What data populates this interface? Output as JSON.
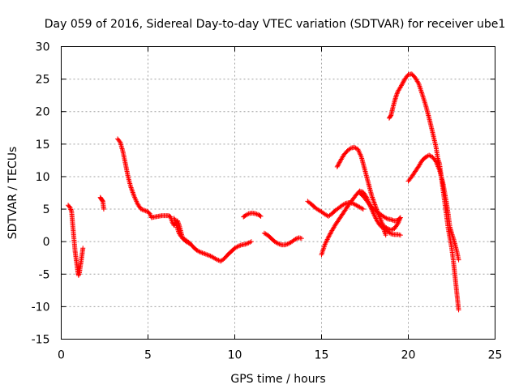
{
  "chart_data": {
    "type": "scatter",
    "title": "Day 059 of 2016, Sidereal Day-to-day VTEC variation (SDTVAR) for receiver ube1",
    "xlabel": "GPS time / hours",
    "ylabel": "SDTVAR / TECUs",
    "xlim": [
      0,
      25
    ],
    "ylim": [
      -15,
      30
    ],
    "xticks": [
      0,
      5,
      10,
      15,
      20,
      25
    ],
    "yticks": [
      -15,
      -10,
      -5,
      0,
      5,
      10,
      15,
      20,
      25,
      30
    ],
    "grid": true,
    "marker": "plus",
    "marker_color": "#ff0000",
    "series": [
      {
        "segments": [
          [
            [
              0.4,
              5.6
            ],
            [
              0.5,
              5.3
            ],
            [
              0.6,
              4.6
            ],
            [
              0.65,
              3.0
            ],
            [
              0.7,
              1.5
            ],
            [
              0.75,
              0.0
            ],
            [
              0.8,
              -1.5
            ],
            [
              0.85,
              -2.5
            ],
            [
              0.9,
              -3.5
            ],
            [
              0.95,
              -4.5
            ],
            [
              1.0,
              -5.2
            ],
            [
              1.05,
              -4.8
            ],
            [
              1.1,
              -3.8
            ],
            [
              1.15,
              -3.0
            ],
            [
              1.2,
              -2.0
            ],
            [
              1.25,
              -1.0
            ]
          ],
          [
            [
              2.25,
              6.8
            ],
            [
              2.3,
              6.6
            ],
            [
              2.35,
              6.4
            ],
            [
              2.4,
              6.2
            ],
            [
              2.45,
              5.0
            ]
          ],
          [
            [
              3.25,
              15.8
            ],
            [
              3.4,
              15.3
            ],
            [
              3.55,
              13.9
            ],
            [
              3.7,
              12.0
            ],
            [
              3.85,
              10.0
            ],
            [
              4.0,
              8.5
            ],
            [
              4.2,
              7.0
            ],
            [
              4.4,
              5.8
            ],
            [
              4.6,
              5.0
            ],
            [
              4.8,
              4.8
            ],
            [
              5.0,
              4.6
            ],
            [
              5.1,
              4.3
            ],
            [
              5.2,
              3.7
            ],
            [
              5.4,
              3.8
            ],
            [
              5.6,
              3.9
            ],
            [
              5.8,
              4.0
            ],
            [
              6.0,
              4.0
            ],
            [
              6.2,
              4.0
            ],
            [
              6.3,
              3.8
            ],
            [
              6.4,
              3.0
            ],
            [
              6.5,
              2.5
            ],
            [
              6.6,
              3.0
            ],
            [
              6.7,
              3.2
            ],
            [
              6.8,
              2.5
            ],
            [
              6.9,
              1.5
            ],
            [
              7.0,
              0.5
            ],
            [
              7.2,
              0.0
            ],
            [
              7.4,
              -0.3
            ]
          ],
          [
            [
              6.5,
              3.6
            ],
            [
              6.6,
              3.0
            ],
            [
              6.7,
              2.0
            ],
            [
              6.8,
              1.2
            ],
            [
              7.0,
              0.5
            ],
            [
              7.2,
              0.2
            ],
            [
              7.4,
              -0.2
            ],
            [
              7.6,
              -0.8
            ],
            [
              7.8,
              -1.3
            ],
            [
              8.0,
              -1.6
            ],
            [
              8.2,
              -1.8
            ],
            [
              8.4,
              -2.0
            ],
            [
              8.6,
              -2.2
            ],
            [
              8.8,
              -2.5
            ],
            [
              9.0,
              -2.8
            ],
            [
              9.2,
              -3.0
            ],
            [
              9.4,
              -2.6
            ],
            [
              9.6,
              -2.0
            ],
            [
              9.8,
              -1.5
            ],
            [
              10.0,
              -1.0
            ],
            [
              10.2,
              -0.7
            ],
            [
              10.4,
              -0.5
            ],
            [
              10.6,
              -0.4
            ],
            [
              10.8,
              -0.2
            ],
            [
              10.95,
              0.0
            ]
          ],
          [
            [
              10.5,
              3.8
            ],
            [
              10.6,
              4.0
            ],
            [
              10.8,
              4.3
            ],
            [
              11.0,
              4.4
            ],
            [
              11.2,
              4.3
            ],
            [
              11.4,
              4.1
            ],
            [
              11.5,
              3.9
            ]
          ],
          [
            [
              11.7,
              1.3
            ],
            [
              11.9,
              1.0
            ],
            [
              12.1,
              0.5
            ],
            [
              12.3,
              0.0
            ],
            [
              12.5,
              -0.3
            ],
            [
              12.7,
              -0.5
            ],
            [
              12.9,
              -0.5
            ],
            [
              13.1,
              -0.3
            ],
            [
              13.3,
              0.0
            ],
            [
              13.5,
              0.4
            ],
            [
              13.7,
              0.6
            ],
            [
              13.85,
              0.5
            ]
          ],
          [
            [
              14.2,
              6.2
            ],
            [
              14.4,
              5.8
            ],
            [
              14.6,
              5.3
            ],
            [
              14.8,
              4.9
            ],
            [
              15.0,
              4.6
            ],
            [
              15.2,
              4.2
            ],
            [
              15.4,
              3.9
            ],
            [
              15.6,
              4.3
            ],
            [
              15.8,
              4.8
            ],
            [
              16.0,
              5.2
            ],
            [
              16.2,
              5.6
            ],
            [
              16.4,
              5.9
            ],
            [
              16.6,
              6.0
            ],
            [
              16.8,
              5.9
            ],
            [
              17.0,
              5.6
            ],
            [
              17.2,
              5.3
            ],
            [
              17.4,
              5.0
            ]
          ],
          [
            [
              15.0,
              -2.0
            ],
            [
              15.1,
              -1.2
            ],
            [
              15.2,
              -0.4
            ],
            [
              15.4,
              0.7
            ],
            [
              15.6,
              1.7
            ],
            [
              15.8,
              2.6
            ],
            [
              16.0,
              3.4
            ],
            [
              16.2,
              4.2
            ],
            [
              16.4,
              5.0
            ],
            [
              16.6,
              5.8
            ],
            [
              16.8,
              6.5
            ],
            [
              17.0,
              7.2
            ],
            [
              17.2,
              7.8
            ],
            [
              17.4,
              7.6
            ],
            [
              17.6,
              6.8
            ],
            [
              17.8,
              5.5
            ],
            [
              18.0,
              4.3
            ],
            [
              18.2,
              3.2
            ],
            [
              18.4,
              2.4
            ],
            [
              18.6,
              2.0
            ],
            [
              18.8,
              1.6
            ],
            [
              19.0,
              1.2
            ],
            [
              19.2,
              1.1
            ],
            [
              19.4,
              1.1
            ],
            [
              19.55,
              1.0
            ]
          ],
          [
            [
              15.9,
              11.5
            ],
            [
              16.1,
              12.5
            ],
            [
              16.3,
              13.4
            ],
            [
              16.5,
              14.0
            ],
            [
              16.7,
              14.4
            ],
            [
              16.9,
              14.5
            ],
            [
              17.1,
              14.2
            ],
            [
              17.3,
              13.0
            ],
            [
              17.5,
              11.0
            ],
            [
              17.7,
              9.0
            ],
            [
              17.9,
              7.0
            ],
            [
              18.1,
              5.5
            ],
            [
              18.3,
              4.0
            ],
            [
              18.5,
              2.8
            ],
            [
              18.6,
              1.8
            ],
            [
              18.7,
              1.0
            ]
          ],
          [
            [
              17.2,
              7.5
            ],
            [
              17.4,
              7.0
            ],
            [
              17.6,
              6.3
            ],
            [
              17.8,
              5.6
            ],
            [
              18.0,
              5.0
            ],
            [
              18.2,
              4.6
            ],
            [
              18.4,
              4.2
            ],
            [
              18.6,
              3.8
            ],
            [
              18.8,
              3.5
            ],
            [
              19.0,
              3.4
            ],
            [
              19.2,
              3.2
            ],
            [
              19.4,
              3.3
            ],
            [
              19.5,
              3.6
            ]
          ],
          [
            [
              18.6,
              2.4
            ],
            [
              18.8,
              2.0
            ],
            [
              19.0,
              1.8
            ],
            [
              19.2,
              2.0
            ],
            [
              19.4,
              2.8
            ],
            [
              19.55,
              3.7
            ]
          ],
          [
            [
              18.9,
              19.0
            ],
            [
              19.0,
              19.4
            ],
            [
              19.1,
              20.5
            ],
            [
              19.2,
              21.5
            ],
            [
              19.3,
              22.4
            ],
            [
              19.4,
              23.1
            ],
            [
              19.6,
              24.0
            ],
            [
              19.8,
              25.0
            ],
            [
              20.0,
              25.7
            ],
            [
              20.2,
              25.8
            ],
            [
              20.4,
              25.2
            ],
            [
              20.6,
              24.3
            ],
            [
              20.8,
              22.7
            ],
            [
              21.0,
              21.0
            ],
            [
              21.2,
              19.0
            ],
            [
              21.4,
              16.8
            ],
            [
              21.6,
              14.5
            ],
            [
              21.7,
              12.8
            ],
            [
              21.8,
              12.0
            ],
            [
              21.9,
              10.0
            ],
            [
              22.0,
              8.0
            ],
            [
              22.1,
              6.0
            ],
            [
              22.2,
              4.0
            ],
            [
              22.3,
              2.0
            ],
            [
              22.4,
              0.5
            ],
            [
              22.5,
              -1.0
            ],
            [
              22.6,
              -3.0
            ],
            [
              22.7,
              -5.5
            ],
            [
              22.8,
              -8.0
            ],
            [
              22.9,
              -10.5
            ]
          ],
          [
            [
              20.0,
              9.3
            ],
            [
              20.2,
              10.0
            ],
            [
              20.4,
              10.8
            ],
            [
              20.6,
              11.6
            ],
            [
              20.8,
              12.5
            ],
            [
              21.0,
              13.0
            ],
            [
              21.2,
              13.3
            ],
            [
              21.4,
              13.0
            ],
            [
              21.6,
              12.3
            ],
            [
              21.8,
              11.0
            ],
            [
              22.0,
              9.0
            ],
            [
              22.1,
              7.5
            ],
            [
              22.2,
              6.0
            ],
            [
              22.3,
              4.2
            ],
            [
              22.4,
              2.2
            ],
            [
              22.5,
              1.3
            ],
            [
              22.6,
              0.5
            ],
            [
              22.7,
              -0.5
            ],
            [
              22.8,
              -1.5
            ],
            [
              22.9,
              -2.8
            ]
          ]
        ]
      }
    ]
  }
}
